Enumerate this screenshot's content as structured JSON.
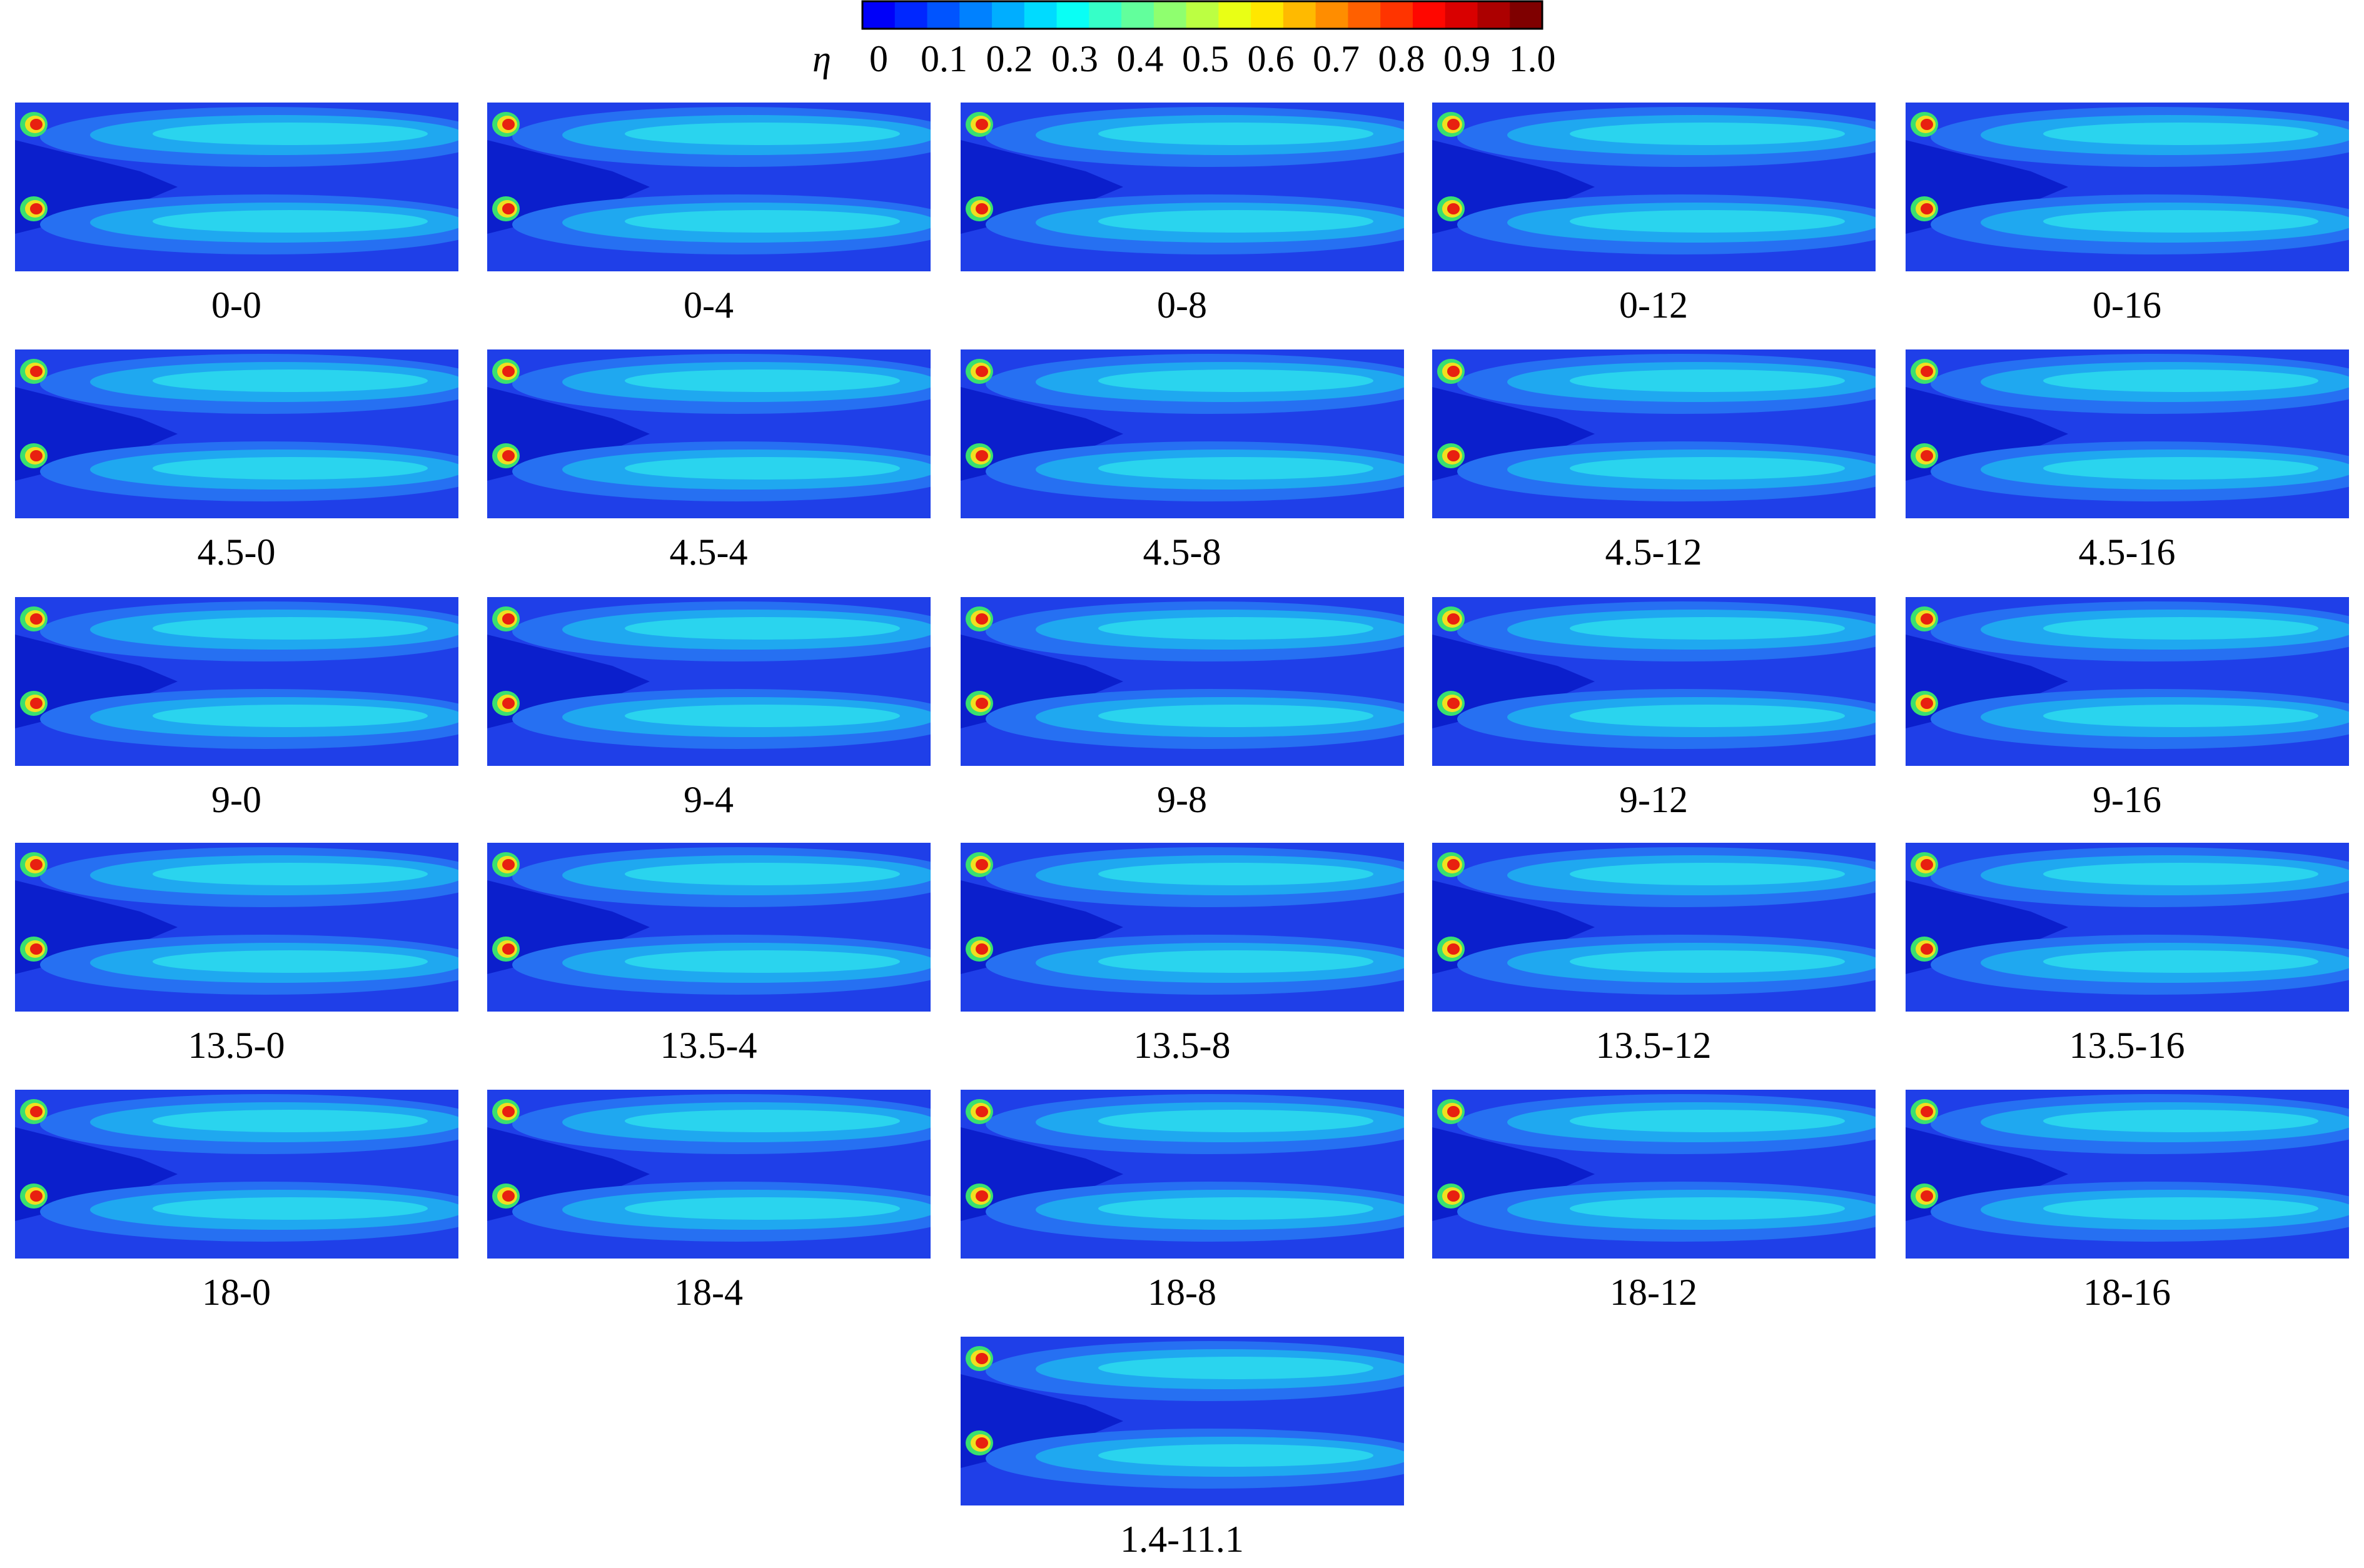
{
  "colorbar": {
    "symbol": "η",
    "ticks": [
      "0",
      "0.1",
      "0.2",
      "0.3",
      "0.4",
      "0.5",
      "0.6",
      "0.7",
      "0.8",
      "0.9",
      "1.0"
    ]
  },
  "panels": [
    "0-0",
    "0-4",
    "0-8",
    "0-12",
    "0-16",
    "4.5-0",
    "4.5-4",
    "4.5-8",
    "4.5-12",
    "4.5-16",
    "9-0",
    "9-4",
    "9-8",
    "9-12",
    "9-16",
    "13.5-0",
    "13.5-4",
    "13.5-8",
    "13.5-12",
    "13.5-16",
    "18-0",
    "18-4",
    "18-8",
    "18-12",
    "18-16",
    "1.4-11.1"
  ]
}
